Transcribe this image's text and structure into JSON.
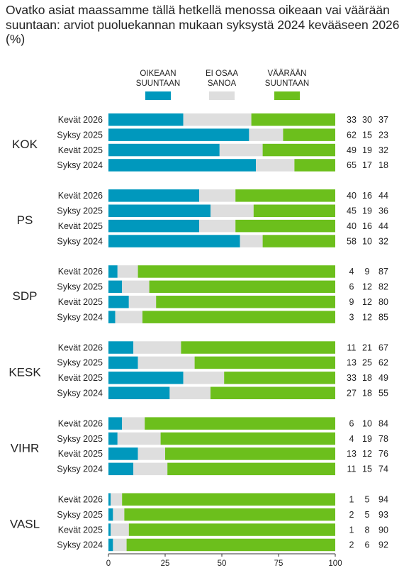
{
  "title": "Ovatko asiat maassamme tällä hetkellä menossa oikeaan vai väärään suuntaan: arviot puoluekannan mukaan syksystä 2024 kevääseen 2026 (%)",
  "chart_data": {
    "type": "bar",
    "orientation": "horizontal",
    "stacked": true,
    "xlim": [
      0,
      100
    ],
    "xticks": [
      0,
      25,
      50,
      75,
      100
    ],
    "grid": false,
    "legend_position": "top-center",
    "legend": [
      {
        "key": "oikeaan",
        "label": [
          "OIKEAAN",
          "SUUNTAAN"
        ],
        "color": "#0098bd"
      },
      {
        "key": "ei_osaa",
        "label": [
          "EI OSAA",
          "SANOA"
        ],
        "color": "#dedede"
      },
      {
        "key": "vaaraan",
        "label": [
          "VÄÄRÄÄN",
          "SUUNTAAN"
        ],
        "color": "#6cbf1c"
      }
    ],
    "groups": [
      {
        "party": "KOK",
        "rows": [
          {
            "period": "Kevät 2026",
            "values": [
              33,
              30,
              37
            ]
          },
          {
            "period": "Syksy 2025",
            "values": [
              62,
              15,
              23
            ]
          },
          {
            "period": "Kevät 2025",
            "values": [
              49,
              19,
              32
            ]
          },
          {
            "period": "Syksy 2024",
            "values": [
              65,
              17,
              18
            ]
          }
        ]
      },
      {
        "party": "PS",
        "rows": [
          {
            "period": "Kevät 2026",
            "values": [
              40,
              16,
              44
            ]
          },
          {
            "period": "Syksy 2025",
            "values": [
              45,
              19,
              36
            ]
          },
          {
            "period": "Kevät 2025",
            "values": [
              40,
              16,
              44
            ]
          },
          {
            "period": "Syksy 2024",
            "values": [
              58,
              10,
              32
            ]
          }
        ]
      },
      {
        "party": "SDP",
        "rows": [
          {
            "period": "Kevät 2026",
            "values": [
              4,
              9,
              87
            ]
          },
          {
            "period": "Syksy 2025",
            "values": [
              6,
              12,
              82
            ]
          },
          {
            "period": "Kevät 2025",
            "values": [
              9,
              12,
              80
            ]
          },
          {
            "period": "Syksy 2024",
            "values": [
              3,
              12,
              85
            ]
          }
        ]
      },
      {
        "party": "KESK",
        "rows": [
          {
            "period": "Kevät 2026",
            "values": [
              11,
              21,
              67
            ]
          },
          {
            "period": "Syksy 2025",
            "values": [
              13,
              25,
              62
            ]
          },
          {
            "period": "Kevät 2025",
            "values": [
              33,
              18,
              49
            ]
          },
          {
            "period": "Syksy 2024",
            "values": [
              27,
              18,
              55
            ]
          }
        ]
      },
      {
        "party": "VIHR",
        "rows": [
          {
            "period": "Kevät 2026",
            "values": [
              6,
              10,
              84
            ]
          },
          {
            "period": "Syksy 2025",
            "values": [
              4,
              19,
              78
            ]
          },
          {
            "period": "Kevät 2025",
            "values": [
              13,
              12,
              76
            ]
          },
          {
            "period": "Syksy 2024",
            "values": [
              11,
              15,
              74
            ]
          }
        ]
      },
      {
        "party": "VASL",
        "rows": [
          {
            "period": "Kevät 2026",
            "values": [
              1,
              5,
              94
            ]
          },
          {
            "period": "Syksy 2025",
            "values": [
              2,
              5,
              93
            ]
          },
          {
            "period": "Kevät 2025",
            "values": [
              1,
              8,
              90
            ]
          },
          {
            "period": "Syksy 2024",
            "values": [
              2,
              6,
              92
            ]
          }
        ]
      }
    ]
  }
}
